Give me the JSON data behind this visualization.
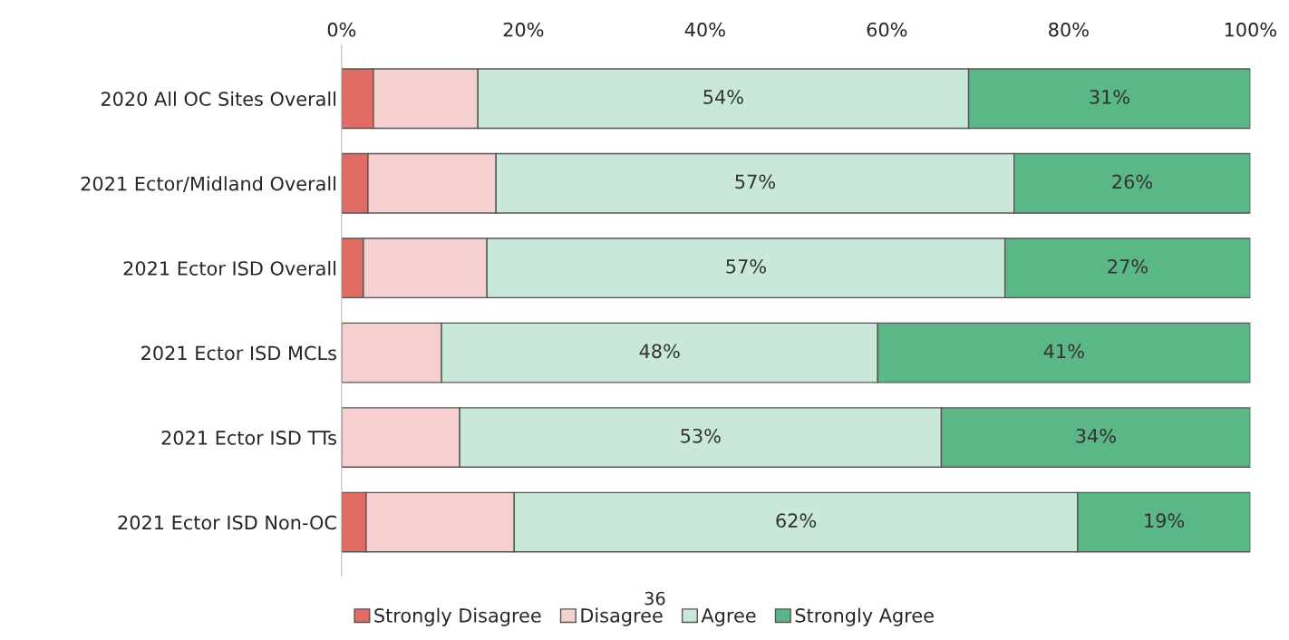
{
  "chart_data": {
    "type": "bar",
    "orientation": "horizontal",
    "stacked": true,
    "categories": [
      "2020 All OC Sites Overall",
      "2021 Ector/Midland Overall",
      "2021 Ector ISD Overall",
      "2021 Ector ISD MCLs",
      "2021 Ector ISD TTs",
      "2021 Ector ISD Non-OC"
    ],
    "series": [
      {
        "name": "Strongly Disagree",
        "color": "#e06c65",
        "values": [
          3.5,
          2.9,
          2.4,
          0,
          0,
          2.7
        ],
        "value_labels": [
          null,
          null,
          null,
          null,
          null,
          null
        ]
      },
      {
        "name": "Disagree",
        "color": "#f6d0cf",
        "values": [
          11.5,
          14.1,
          13.6,
          11,
          13,
          16.3
        ],
        "value_labels": [
          null,
          null,
          null,
          null,
          null,
          null
        ]
      },
      {
        "name": "Agree",
        "color": "#c9e8d9",
        "values": [
          54,
          57,
          57,
          48,
          53,
          62
        ],
        "value_labels": [
          "54%",
          "57%",
          "57%",
          "48%",
          "53%",
          "62%"
        ]
      },
      {
        "name": "Strongly Agree",
        "color": "#5cb786",
        "values": [
          31,
          26,
          27,
          41,
          34,
          19
        ],
        "value_labels": [
          "31%",
          "26%",
          "27%",
          "41%",
          "34%",
          "19%"
        ]
      }
    ],
    "xlim": [
      0,
      100
    ],
    "xticks": [
      {
        "value": 0,
        "label": "0%"
      },
      {
        "value": 20,
        "label": "20%"
      },
      {
        "value": 40,
        "label": "40%"
      },
      {
        "value": 60,
        "label": "60%"
      },
      {
        "value": 80,
        "label": "80%"
      },
      {
        "value": 100,
        "label": "100%"
      }
    ],
    "grid": false,
    "legend": "bottom",
    "annotations": [
      "36"
    ]
  }
}
